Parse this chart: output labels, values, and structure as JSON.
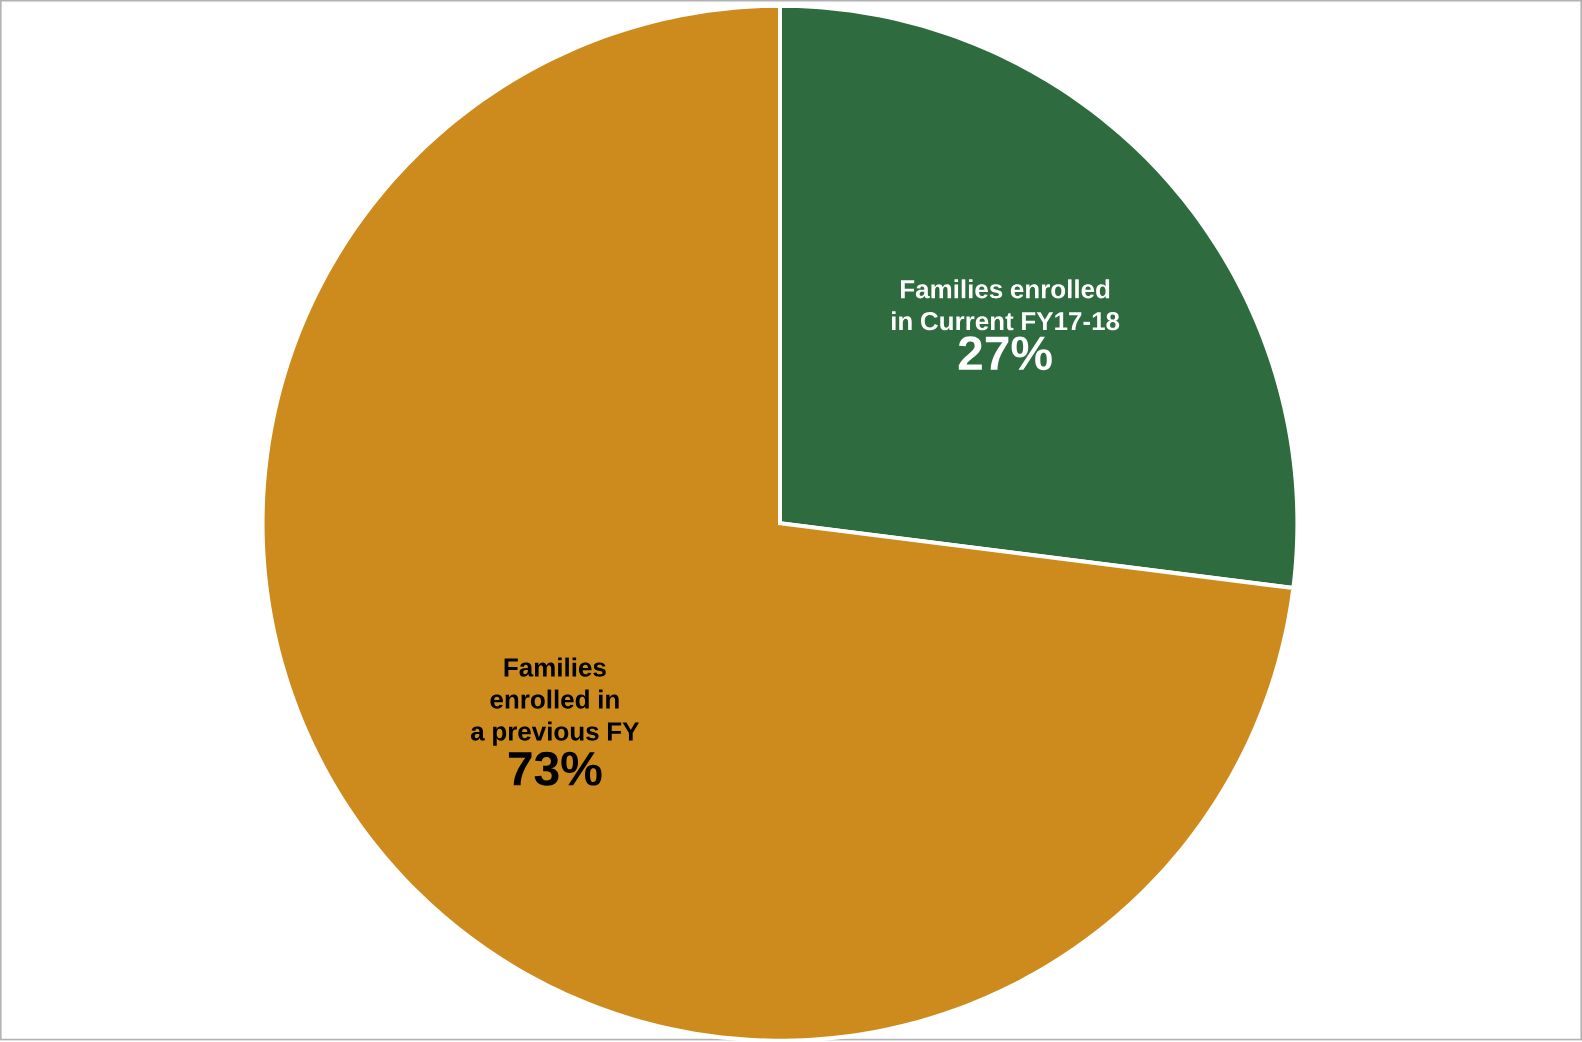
{
  "chart_data": {
    "type": "pie",
    "categories": [
      "Families enrolled in Current FY17-18",
      "Families enrolled in a previous FY"
    ],
    "values": [
      27,
      73
    ],
    "colors": [
      "#2e6b3e",
      "#cc8b1c"
    ],
    "value_labels": [
      "27%",
      "73%"
    ]
  }
}
